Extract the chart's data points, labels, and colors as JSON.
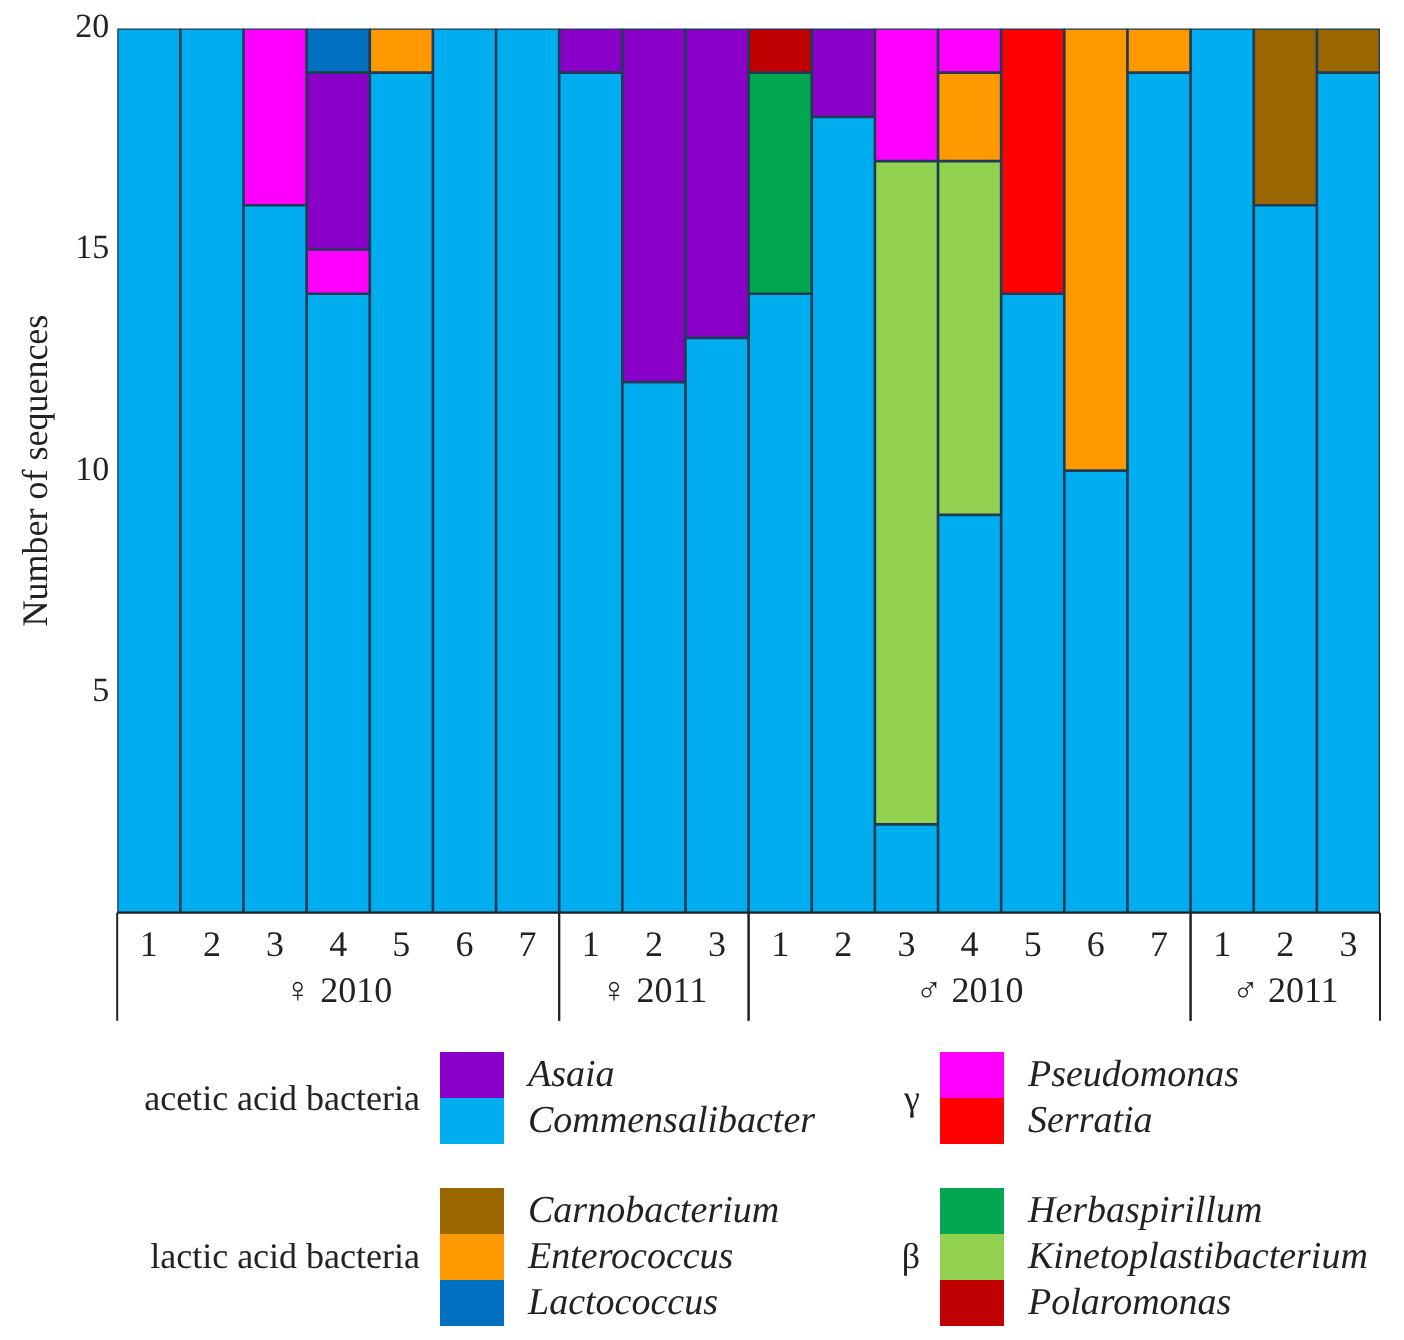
{
  "chart_data": {
    "type": "bar",
    "stacked": true,
    "ylabel": "Number of sequences",
    "ylim": [
      0,
      20
    ],
    "yticks": [
      5,
      10,
      15,
      20
    ],
    "legend": "bottom",
    "categories": [
      "1",
      "2",
      "3",
      "4",
      "5",
      "6",
      "7",
      "1",
      "2",
      "3",
      "1",
      "2",
      "3",
      "4",
      "5",
      "6",
      "7",
      "1",
      "2",
      "3"
    ],
    "annotations": [
      "♀ 2010",
      "♀ 2011",
      "♂ 2010",
      "♂ 2011",
      "acetic acid bacteria",
      "γ",
      "lactic acid bacteria",
      "β"
    ],
    "series": [
      {
        "name": "Commensalibacter",
        "color": "#00aeef",
        "values": [
          20,
          20,
          16,
          14,
          19,
          20,
          20,
          19,
          12,
          13,
          14,
          18,
          2,
          9,
          14,
          10,
          19,
          20,
          16,
          19
        ]
      },
      {
        "name": "Kinetoplastibacterium",
        "color": "#92d050",
        "values": [
          null,
          null,
          null,
          null,
          null,
          null,
          null,
          null,
          null,
          null,
          null,
          null,
          15,
          8,
          null,
          null,
          null,
          null,
          null,
          null
        ]
      },
      {
        "name": "Herbaspirillum",
        "color": "#00a650",
        "values": [
          null,
          null,
          null,
          null,
          null,
          null,
          null,
          null,
          null,
          null,
          5,
          null,
          null,
          null,
          null,
          null,
          null,
          null,
          null,
          null
        ]
      },
      {
        "name": "Enterococcus",
        "color": "#ff9900",
        "values": [
          null,
          null,
          null,
          null,
          1,
          null,
          null,
          null,
          null,
          null,
          null,
          null,
          null,
          2,
          null,
          10,
          1,
          null,
          null,
          null
        ]
      },
      {
        "name": "Pseudomonas",
        "color": "#ff00ff",
        "values": [
          null,
          null,
          4,
          1,
          null,
          null,
          null,
          null,
          null,
          null,
          null,
          null,
          3,
          1,
          null,
          null,
          null,
          null,
          null,
          null
        ]
      },
      {
        "name": "Asaia",
        "color": "#8b00c9",
        "values": [
          null,
          null,
          null,
          4,
          null,
          null,
          null,
          1,
          8,
          7,
          null,
          2,
          null,
          null,
          null,
          null,
          null,
          null,
          null,
          null
        ]
      },
      {
        "name": "Lactococcus",
        "color": "#0070c0",
        "values": [
          null,
          null,
          null,
          1,
          null,
          null,
          null,
          null,
          null,
          null,
          null,
          null,
          null,
          null,
          null,
          null,
          null,
          null,
          null,
          null
        ]
      },
      {
        "name": "Serratia",
        "color": "#ff0000",
        "values": [
          null,
          null,
          null,
          null,
          null,
          null,
          null,
          null,
          null,
          null,
          null,
          null,
          null,
          null,
          6,
          null,
          null,
          null,
          null,
          null
        ]
      },
      {
        "name": "Carnobacterium",
        "color": "#996600",
        "values": [
          null,
          null,
          null,
          null,
          null,
          null,
          null,
          null,
          null,
          null,
          null,
          null,
          null,
          null,
          null,
          null,
          null,
          null,
          4,
          1
        ]
      },
      {
        "name": "Polaromonas",
        "color": "#c00000",
        "values": [
          null,
          null,
          null,
          null,
          null,
          null,
          null,
          null,
          null,
          null,
          1,
          null,
          null,
          null,
          null,
          null,
          null,
          null,
          null,
          null
        ]
      }
    ]
  }
}
